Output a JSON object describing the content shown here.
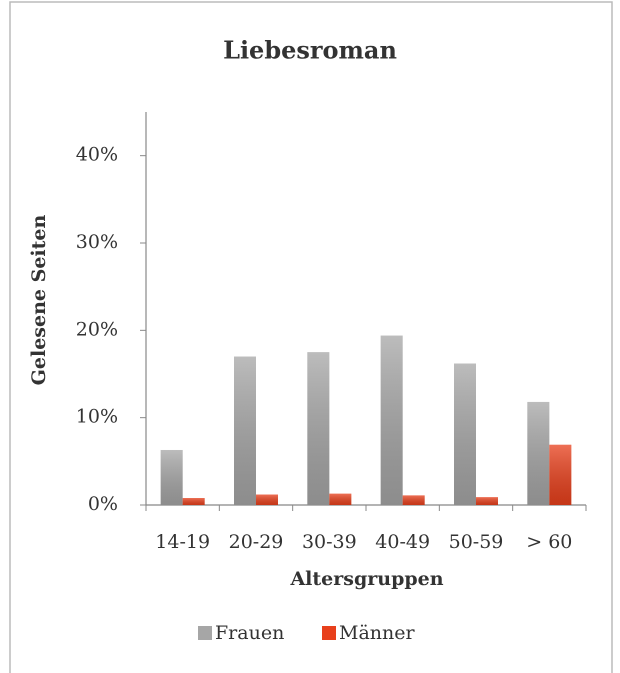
{
  "chart_data": {
    "type": "bar",
    "title": "Liebesroman",
    "x_label": "Altersgruppen",
    "y_label": "Gelesene Seiten",
    "categories": [
      "14-19",
      "20-29",
      "30-39",
      "40-49",
      "50-59",
      "> 60"
    ],
    "series": [
      {
        "name": "Frauen",
        "color": "#a6a6a6",
        "values": [
          6.3,
          17,
          17.5,
          19.4,
          16.2,
          11.8
        ]
      },
      {
        "name": "Männer",
        "color": "#e8401c",
        "values": [
          0.8,
          1.2,
          1.3,
          1.1,
          0.9,
          6.9
        ]
      }
    ],
    "ylim": [
      0,
      45
    ],
    "yticks": [
      {
        "value": 0,
        "label": "0%"
      },
      {
        "value": 10,
        "label": "10%"
      },
      {
        "value": 20,
        "label": "20%"
      },
      {
        "value": 30,
        "label": "30%"
      },
      {
        "value": 40,
        "label": "40%"
      }
    ],
    "legend": "bottom",
    "grid": false
  }
}
